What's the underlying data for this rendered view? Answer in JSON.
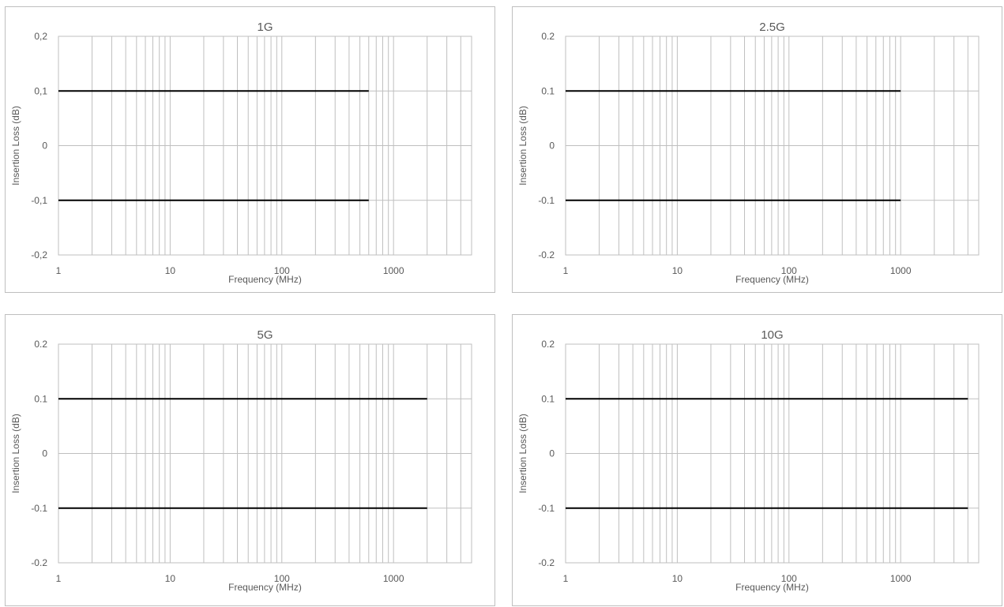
{
  "chart_data": [
    {
      "type": "line",
      "title": "1G",
      "xlabel": "Frequency (MHz)",
      "ylabel": "Insertion Loss (dB)",
      "x_scale": "log",
      "xlim": [
        1,
        5000
      ],
      "ylim": [
        -0.2,
        0.2
      ],
      "x_ticks": [
        1,
        10,
        100,
        1000
      ],
      "x_tick_labels": [
        "1",
        "10",
        "100",
        "1000"
      ],
      "y_ticks": [
        0.2,
        0.1,
        0,
        -0.1,
        -0.2
      ],
      "y_tick_labels": [
        "0,2",
        "0,1",
        "0",
        "-0,1",
        "-0,2"
      ],
      "grid": true,
      "series": [
        {
          "values": [
            [
              1,
              0.1
            ],
            [
              600,
              0.1
            ]
          ],
          "color": "#000000"
        },
        {
          "values": [
            [
              1,
              -0.1
            ],
            [
              600,
              -0.1
            ]
          ],
          "color": "#000000"
        }
      ]
    },
    {
      "type": "line",
      "title": "2.5G",
      "xlabel": "Frequency (MHz)",
      "ylabel": "Insertion Loss (dB)",
      "x_scale": "log",
      "xlim": [
        1,
        5000
      ],
      "ylim": [
        -0.2,
        0.2
      ],
      "x_ticks": [
        1,
        10,
        100,
        1000
      ],
      "x_tick_labels": [
        "1",
        "10",
        "100",
        "1000"
      ],
      "y_ticks": [
        0.2,
        0.1,
        0,
        -0.1,
        -0.2
      ],
      "y_tick_labels": [
        "0.2",
        "0.1",
        "0",
        "-0.1",
        "-0.2"
      ],
      "grid": true,
      "series": [
        {
          "values": [
            [
              1,
              0.1
            ],
            [
              1000,
              0.1
            ]
          ],
          "color": "#000000"
        },
        {
          "values": [
            [
              1,
              -0.1
            ],
            [
              1000,
              -0.1
            ]
          ],
          "color": "#000000"
        }
      ]
    },
    {
      "type": "line",
      "title": "5G",
      "xlabel": "Frequency (MHz)",
      "ylabel": "Insertion Loss (dB)",
      "x_scale": "log",
      "xlim": [
        1,
        5000
      ],
      "ylim": [
        -0.2,
        0.2
      ],
      "x_ticks": [
        1,
        10,
        100,
        1000
      ],
      "x_tick_labels": [
        "1",
        "10",
        "100",
        "1000"
      ],
      "y_ticks": [
        0.2,
        0.1,
        0,
        -0.1,
        -0.2
      ],
      "y_tick_labels": [
        "0.2",
        "0.1",
        "0",
        "-0.1",
        "-0.2"
      ],
      "grid": true,
      "series": [
        {
          "values": [
            [
              1,
              0.1
            ],
            [
              2000,
              0.1
            ]
          ],
          "color": "#000000"
        },
        {
          "values": [
            [
              1,
              -0.1
            ],
            [
              2000,
              -0.1
            ]
          ],
          "color": "#000000"
        }
      ]
    },
    {
      "type": "line",
      "title": "10G",
      "xlabel": "Frequency (MHz)",
      "ylabel": "Insertion Loss (dB)",
      "x_scale": "log",
      "xlim": [
        1,
        5000
      ],
      "ylim": [
        -0.2,
        0.2
      ],
      "x_ticks": [
        1,
        10,
        100,
        1000
      ],
      "x_tick_labels": [
        "1",
        "10",
        "100",
        "1000"
      ],
      "y_ticks": [
        0.2,
        0.1,
        0,
        -0.1,
        -0.2
      ],
      "y_tick_labels": [
        "0.2",
        "0.1",
        "0",
        "-0.1",
        "-0.2"
      ],
      "grid": true,
      "series": [
        {
          "values": [
            [
              1,
              0.1
            ],
            [
              4000,
              0.1
            ]
          ],
          "color": "#000000"
        },
        {
          "values": [
            [
              1,
              -0.1
            ],
            [
              4000,
              -0.1
            ]
          ],
          "color": "#000000"
        }
      ]
    }
  ]
}
